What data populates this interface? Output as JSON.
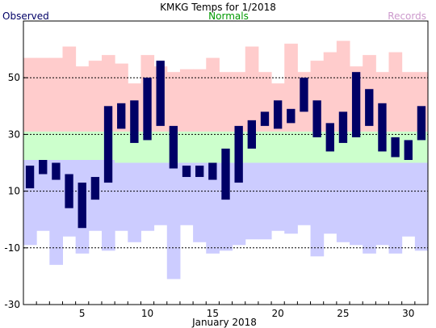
{
  "chart_data": {
    "type": "bar",
    "title": "KMKG Temps for 1/2018",
    "xlabel": "January 2018",
    "ylabel": "",
    "legend": {
      "observed": "Observed",
      "normals": "Normals",
      "records": "Records"
    },
    "colors": {
      "observed": "#000066",
      "normals": "#009900",
      "records": "#cc99cc",
      "record_high_band": "#ffcccc",
      "normal_band": "#ccffcc",
      "record_low_band": "#ccccff",
      "gridline": "#000000"
    },
    "ylim": [
      -30,
      70
    ],
    "yticks": [
      -30,
      -10,
      10,
      30,
      50
    ],
    "xlim": [
      0.5,
      31.5
    ],
    "xticks": [
      5,
      10,
      15,
      20,
      25,
      30
    ],
    "days": [
      1,
      2,
      3,
      4,
      5,
      6,
      7,
      8,
      9,
      10,
      11,
      12,
      13,
      14,
      15,
      16,
      17,
      18,
      19,
      20,
      21,
      22,
      23,
      24,
      25,
      26,
      27,
      28,
      29,
      30,
      31
    ],
    "observed_high": [
      19,
      21,
      20,
      16,
      13,
      15,
      40,
      41,
      42,
      50,
      56,
      33,
      19,
      19,
      20,
      25,
      33,
      35,
      38,
      42,
      39,
      50,
      42,
      34,
      38,
      52,
      46,
      41,
      29,
      28,
      40
    ],
    "observed_low": [
      11,
      16,
      14,
      4,
      -3,
      7,
      13,
      32,
      27,
      28,
      33,
      18,
      15,
      15,
      14,
      7,
      13,
      25,
      33,
      32,
      34,
      38,
      29,
      24,
      27,
      29,
      33,
      24,
      22,
      21,
      28
    ],
    "normal_high": [
      31,
      31,
      31,
      31,
      31,
      31,
      31,
      31,
      31,
      31,
      31,
      31,
      31,
      31,
      31,
      31,
      31,
      31,
      31,
      31,
      31,
      31,
      31,
      31,
      31,
      31,
      31,
      31,
      31,
      31,
      31
    ],
    "normal_low": [
      21,
      21,
      21,
      21,
      21,
      21,
      21,
      20,
      20,
      20,
      20,
      20,
      20,
      20,
      20,
      20,
      20,
      20,
      20,
      20,
      20,
      20,
      20,
      20,
      20,
      20,
      20,
      20,
      20,
      20,
      20
    ],
    "record_high": [
      57,
      57,
      57,
      61,
      54,
      56,
      58,
      55,
      48,
      58,
      54,
      52,
      53,
      53,
      57,
      52,
      52,
      61,
      52,
      48,
      62,
      52,
      56,
      59,
      63,
      54,
      58,
      52,
      59,
      52,
      52
    ],
    "record_low": [
      -9,
      -4,
      -16,
      -6,
      -12,
      -4,
      -11,
      -4,
      -8,
      -4,
      -2,
      -21,
      -2,
      -8,
      -12,
      -11,
      -9,
      -7,
      -7,
      -4,
      -5,
      -2,
      -13,
      -5,
      -8,
      -9,
      -12,
      -9,
      -12,
      -6,
      -11
    ]
  }
}
